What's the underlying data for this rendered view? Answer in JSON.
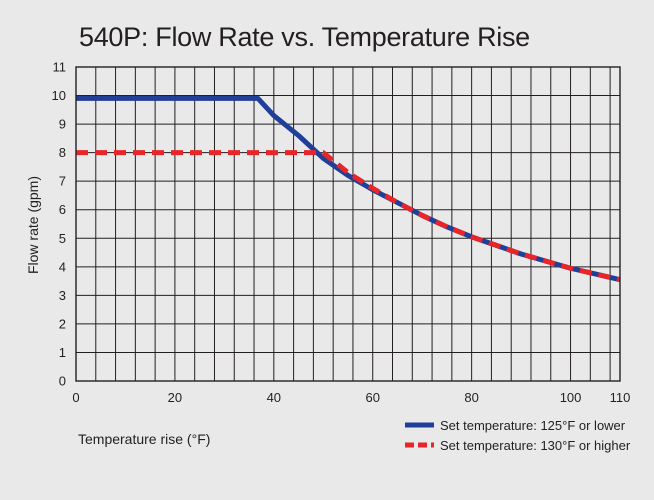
{
  "chart_data": {
    "type": "line",
    "title": "540P: Flow Rate vs. Temperature Rise",
    "xlabel": "Temperature rise (°F)",
    "ylabel": "Flow rate (gpm)",
    "xlim": [
      0,
      110
    ],
    "ylim": [
      0,
      11
    ],
    "x_ticks": [
      0,
      20,
      40,
      60,
      80,
      100,
      110
    ],
    "y_ticks": [
      0,
      1,
      2,
      3,
      4,
      5,
      6,
      7,
      8,
      9,
      10,
      11
    ],
    "x_grid_step": 4,
    "y_grid_step": 1,
    "grid": true,
    "legend_position": "bottom-right",
    "series": [
      {
        "name": "Set temperature: 125°F or lower",
        "color": "#1f3f98",
        "style": "solid",
        "x": [
          0,
          36.8,
          40,
          45,
          50,
          55,
          60,
          65,
          70,
          75,
          80,
          85,
          90,
          95,
          100,
          105,
          110
        ],
        "y": [
          9.9,
          9.9,
          9.3,
          8.6,
          7.8,
          7.2,
          6.7,
          6.25,
          5.8,
          5.4,
          5.05,
          4.75,
          4.45,
          4.2,
          3.95,
          3.75,
          3.55
        ]
      },
      {
        "name": "Set temperature: 130°F or higher",
        "color": "#e8262a",
        "style": "dashed",
        "x": [
          0,
          50,
          55,
          60,
          65,
          70,
          75,
          80,
          85,
          90,
          95,
          100,
          105,
          110
        ],
        "y": [
          8.0,
          8.0,
          7.3,
          6.75,
          6.25,
          5.8,
          5.4,
          5.05,
          4.75,
          4.45,
          4.2,
          3.95,
          3.75,
          3.55
        ]
      }
    ]
  }
}
